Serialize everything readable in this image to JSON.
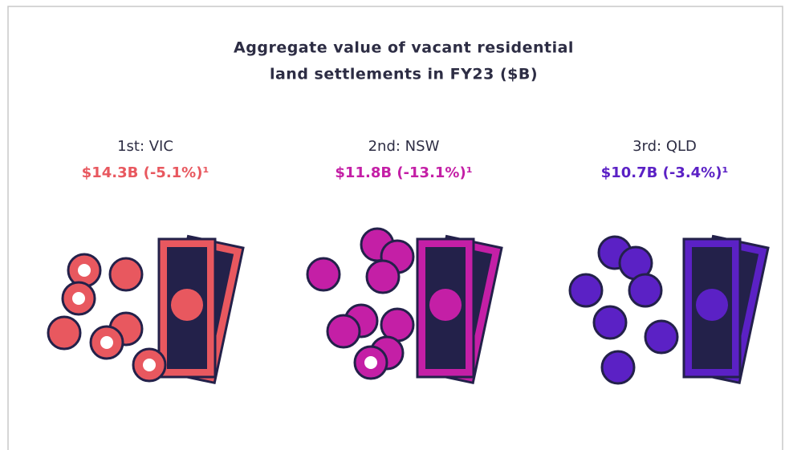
{
  "title_lines": [
    "Aggregate value of vacant residential",
    "land settlements in FY23 ($B)"
  ],
  "items": [
    {
      "label": "1st: VIC",
      "value": "$14.3B (-5.1%)¹"
    },
    {
      "label": "2nd: NSW",
      "value": "$11.8B (-13.1%)¹"
    },
    {
      "label": "3rd: QLD",
      "value": "$10.7B (-3.4%)¹"
    }
  ]
}
